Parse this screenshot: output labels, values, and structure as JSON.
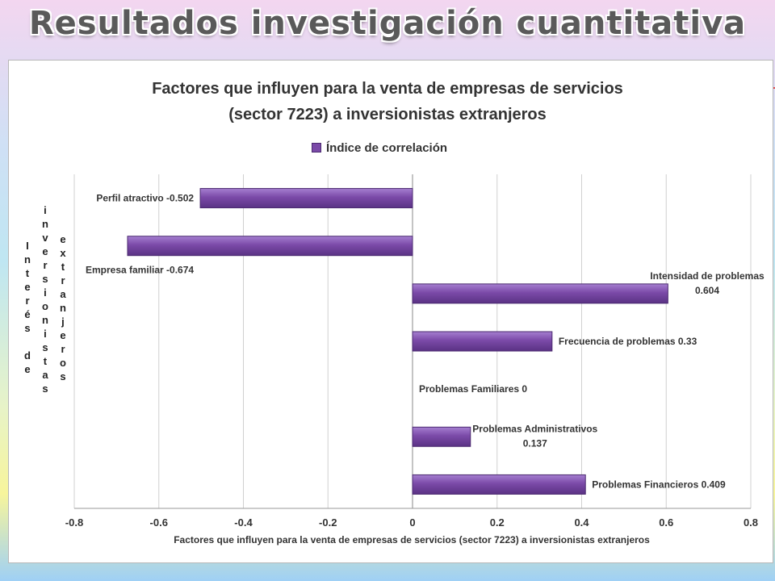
{
  "slide_title": "Resultados investigación cuantitativa",
  "chart_data": {
    "type": "bar",
    "orientation": "horizontal",
    "title_lines": [
      "Factores que influyen para la venta de empresas de servicios",
      "(sector 7223)  a inversionistas extranjeros"
    ],
    "legend": "Índice de correlación",
    "legend_position": "top",
    "ylabel_columns": [
      "Interés de",
      "inversionistas",
      "extranjeros"
    ],
    "xlabel": "Factores que influyen para la venta de empresas de servicios (sector 7223) a inversionistas extranjeros",
    "xlim": [
      -0.8,
      0.8
    ],
    "xticks": [
      -0.8,
      -0.6,
      -0.4,
      -0.2,
      0,
      0.2,
      0.4,
      0.6,
      0.8
    ],
    "xtick_labels": [
      "-0.8",
      "-0.6",
      "-0.4",
      "-0.2",
      "0",
      "0.2",
      "0.4",
      "0.6",
      "0.8"
    ],
    "grid": true,
    "series": [
      {
        "name": "Índice de correlación",
        "color": "#7b4aa8",
        "categories": [
          "Perfil atractivo",
          "Empresa familiar",
          "Intensidad de problemas",
          "Frecuencia de problemas",
          "Problemas Familiares",
          "Problemas Administrativos",
          "Problemas Financieros"
        ],
        "values": [
          -0.502,
          -0.674,
          0.604,
          0.33,
          0,
          0.137,
          0.409
        ],
        "data_labels": [
          [
            "Perfil atractivo -0.502"
          ],
          [
            "Empresa familiar -0.674"
          ],
          [
            "Intensidad de problemas",
            "0.604"
          ],
          [
            "Frecuencia de problemas 0.33"
          ],
          [
            "Problemas Familiares 0"
          ],
          [
            "Problemas Administrativos",
            "0.137"
          ],
          [
            "Problemas Financieros 0.409"
          ]
        ]
      }
    ]
  }
}
